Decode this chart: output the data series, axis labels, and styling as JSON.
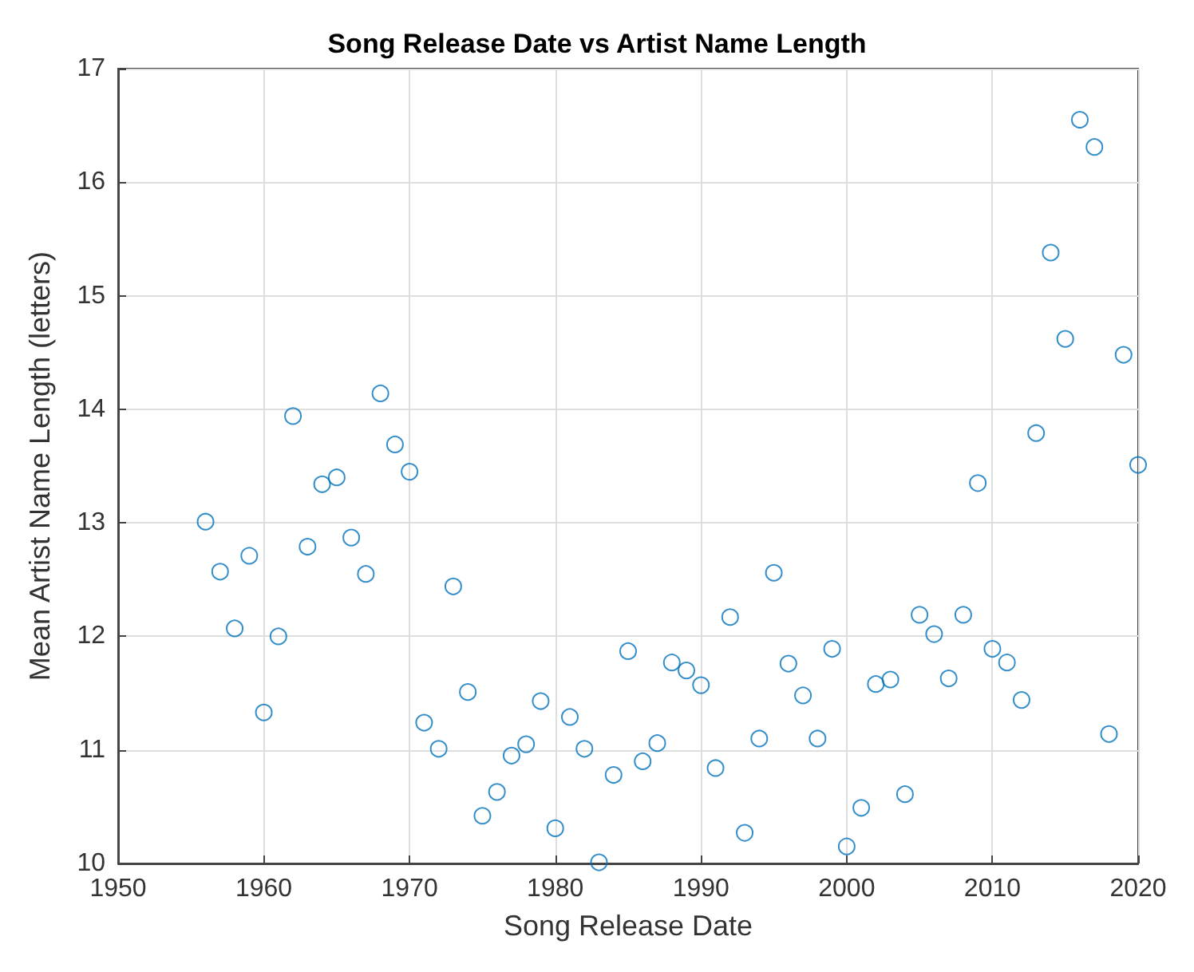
{
  "chart_data": {
    "type": "scatter",
    "title": "Song Release Date vs Artist Name Length",
    "xlabel": "Song Release Date",
    "ylabel": "Mean Artist Name Length (letters)",
    "x": [
      1956,
      1957,
      1958,
      1959,
      1960,
      1961,
      1962,
      1963,
      1964,
      1965,
      1966,
      1967,
      1968,
      1969,
      1970,
      1971,
      1972,
      1973,
      1974,
      1975,
      1976,
      1977,
      1978,
      1979,
      1980,
      1981,
      1982,
      1983,
      1984,
      1985,
      1986,
      1987,
      1988,
      1989,
      1990,
      1991,
      1992,
      1993,
      1994,
      1995,
      1996,
      1997,
      1998,
      1999,
      2000,
      2001,
      2002,
      2003,
      2004,
      2005,
      2006,
      2007,
      2008,
      2009,
      2010,
      2011,
      2012,
      2013,
      2014,
      2015,
      2016,
      2017,
      2018,
      2019,
      2020
    ],
    "series": [
      {
        "color": "#0072bd",
        "values": [
          13.01,
          12.57,
          12.07,
          12.71,
          11.33,
          12.0,
          13.94,
          12.79,
          13.34,
          13.4,
          12.87,
          12.55,
          14.14,
          13.69,
          13.45,
          11.24,
          11.01,
          12.44,
          11.51,
          10.42,
          10.63,
          10.95,
          11.05,
          11.43,
          10.31,
          11.29,
          11.01,
          10.01,
          10.78,
          11.87,
          10.9,
          11.06,
          11.77,
          11.7,
          11.57,
          10.84,
          12.17,
          10.27,
          11.1,
          12.56,
          11.76,
          11.48,
          11.1,
          11.89,
          10.15,
          10.49,
          11.58,
          11.62,
          10.61,
          12.19,
          12.02,
          11.63,
          12.19,
          13.35,
          11.89,
          11.77,
          11.44,
          13.79,
          15.38,
          14.62,
          16.55,
          16.31,
          11.14,
          14.48,
          13.51
        ]
      }
    ],
    "xlim": [
      1950,
      2020
    ],
    "xticks": [
      1950,
      1960,
      1970,
      1980,
      1990,
      2000,
      2010,
      2020
    ],
    "ylim": [
      10,
      17
    ],
    "yticks": [
      10,
      11,
      12,
      13,
      14,
      15,
      16,
      17
    ],
    "grid": true,
    "marker": "circle"
  }
}
